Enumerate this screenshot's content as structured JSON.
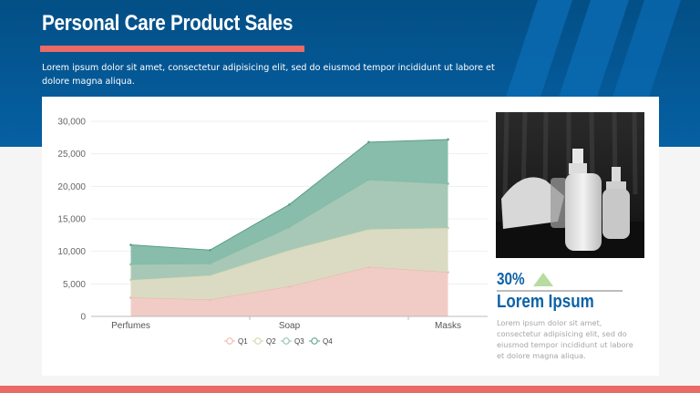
{
  "header": {
    "title": "Personal Care Product Sales",
    "subtitle": "Lorem ipsum dolor sit amet, consectetur adipisicing elit, sed do eiusmod tempor incididunt ut labore et dolore magna aliqua.",
    "background_color": "#0660a3",
    "accent_color": "#e96a66"
  },
  "side_panel": {
    "image_icon": "product-bottles-photo",
    "stat_value": "30%",
    "stat_trend_icon": "up-triangle-icon",
    "heading": "Lorem Ipsum",
    "body": "Lorem ipsum dolor sit amet, consectetur adipisicing elit, sed do eiusmod tempor incididunt ut labore et dolore magna aliqua.",
    "heading_color": "#0c62a6",
    "trend_color": "#b6dca0"
  },
  "chart_data": {
    "type": "area",
    "stacked": true,
    "title": "",
    "xlabel": "",
    "ylabel": "",
    "categories": [
      "Perfumes",
      "",
      "Soap",
      "",
      "Masks"
    ],
    "ylim": [
      0,
      30000
    ],
    "yticks": [
      "0",
      "5,000",
      "10,000",
      "15,000",
      "20,000",
      "25,000",
      "30,000"
    ],
    "grid": true,
    "legend_position": "bottom",
    "series": [
      {
        "name": "Q1",
        "color": "#f0c9c3",
        "line": "#efb3ab",
        "values": [
          2900,
          2600,
          4600,
          7600,
          6800
        ]
      },
      {
        "name": "Q2",
        "color": "#d8d9bf",
        "line": "#cdd6a8",
        "values": [
          2700,
          3700,
          5600,
          5800,
          6800
        ]
      },
      {
        "name": "Q3",
        "color": "#a3c5b3",
        "line": "#8dbfa6",
        "values": [
          2400,
          1800,
          3500,
          7600,
          6800
        ]
      },
      {
        "name": "Q4",
        "color": "#82b9a6",
        "line": "#5a9e86",
        "values": [
          3000,
          2100,
          3500,
          5800,
          6800
        ]
      }
    ]
  }
}
